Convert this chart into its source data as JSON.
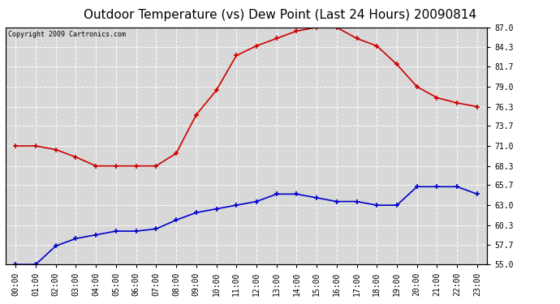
{
  "title": "Outdoor Temperature (vs) Dew Point (Last 24 Hours) 20090814",
  "copyright": "Copyright 2009 Cartronics.com",
  "x_labels": [
    "00:00",
    "01:00",
    "02:00",
    "03:00",
    "04:00",
    "05:00",
    "06:00",
    "07:00",
    "08:00",
    "09:00",
    "10:00",
    "11:00",
    "12:00",
    "13:00",
    "14:00",
    "15:00",
    "16:00",
    "17:00",
    "18:00",
    "19:00",
    "20:00",
    "21:00",
    "22:00",
    "23:00"
  ],
  "temp_values": [
    71.0,
    71.0,
    70.5,
    69.5,
    68.3,
    68.3,
    68.3,
    68.3,
    70.0,
    75.2,
    78.5,
    83.2,
    84.5,
    85.5,
    86.5,
    87.0,
    87.0,
    85.5,
    84.5,
    82.0,
    79.0,
    77.5,
    76.8,
    76.3
  ],
  "dew_values": [
    55.0,
    55.0,
    57.5,
    58.5,
    59.0,
    59.5,
    59.5,
    59.8,
    61.0,
    62.0,
    62.5,
    63.0,
    63.5,
    64.5,
    64.5,
    64.0,
    63.5,
    63.5,
    63.0,
    63.0,
    65.5,
    65.5,
    65.5,
    64.5
  ],
  "temp_color": "#cc0000",
  "dew_color": "#0000cc",
  "ylim_min": 55.0,
  "ylim_max": 87.0,
  "y_ticks": [
    55.0,
    57.7,
    60.3,
    63.0,
    65.7,
    68.3,
    71.0,
    73.7,
    76.3,
    79.0,
    81.7,
    84.3,
    87.0
  ],
  "bg_color": "#ffffff",
  "plot_bg_color": "#d8d8d8",
  "grid_color": "#ffffff",
  "title_fontsize": 11,
  "copyright_fontsize": 6,
  "tick_fontsize": 7,
  "marker": "+",
  "marker_size": 5,
  "marker_edge_width": 1.2,
  "line_width": 1.2
}
